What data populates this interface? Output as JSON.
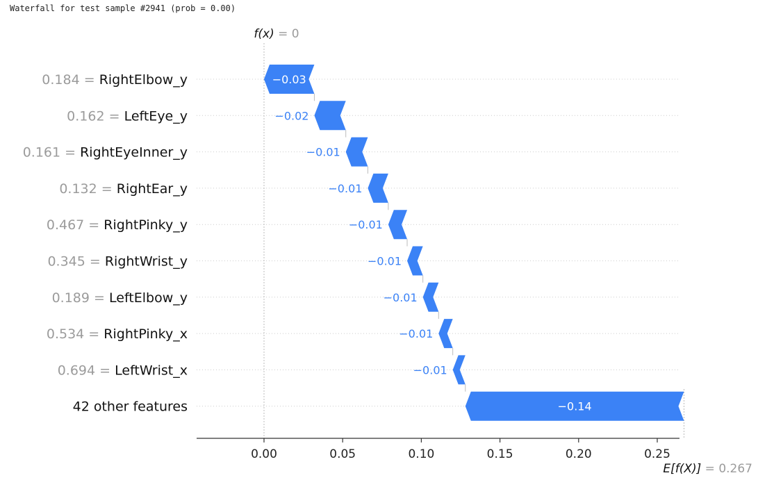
{
  "caption": "Waterfall for test sample #2941 (prob = 0.00)",
  "colors": {
    "negative": "#3b82f6",
    "positive": "#ff0d57",
    "grid": "#cccccc",
    "axis": "#333333"
  },
  "chart_data": {
    "type": "waterfall",
    "fx_label": "f(x)",
    "fx_value": "= 0",
    "fx": 0,
    "ex_label": "E[f(X)]",
    "ex_value": "= 0.267",
    "ex": 0.267,
    "xlim": [
      -0.044,
      0.268
    ],
    "x_ticks": [
      0.0,
      0.05,
      0.1,
      0.15,
      0.2,
      0.25
    ],
    "x_tick_labels": [
      "0.00",
      "0.05",
      "0.10",
      "0.15",
      "0.20",
      "0.25"
    ],
    "features": [
      {
        "value": "0.184",
        "name": "RightElbow_y",
        "start": 0.0,
        "end": 0.032,
        "label": "−0.03"
      },
      {
        "value": "0.162",
        "name": "LeftEye_y",
        "start": 0.032,
        "end": 0.052,
        "label": "−0.02"
      },
      {
        "value": "0.161",
        "name": "RightEyeInner_y",
        "start": 0.052,
        "end": 0.066,
        "label": "−0.01"
      },
      {
        "value": "0.132",
        "name": "RightEar_y",
        "start": 0.066,
        "end": 0.079,
        "label": "−0.01"
      },
      {
        "value": "0.467",
        "name": "RightPinky_y",
        "start": 0.079,
        "end": 0.091,
        "label": "−0.01"
      },
      {
        "value": "0.345",
        "name": "RightWrist_y",
        "start": 0.091,
        "end": 0.101,
        "label": "−0.01"
      },
      {
        "value": "0.189",
        "name": "LeftElbow_y",
        "start": 0.101,
        "end": 0.111,
        "label": "−0.01"
      },
      {
        "value": "0.534",
        "name": "RightPinky_x",
        "start": 0.111,
        "end": 0.12,
        "label": "−0.01"
      },
      {
        "value": "0.694",
        "name": "LeftWrist_x",
        "start": 0.12,
        "end": 0.128,
        "label": "−0.01"
      },
      {
        "value": "",
        "name": "42 other features",
        "start": 0.128,
        "end": 0.267,
        "label": "−0.14"
      }
    ]
  }
}
